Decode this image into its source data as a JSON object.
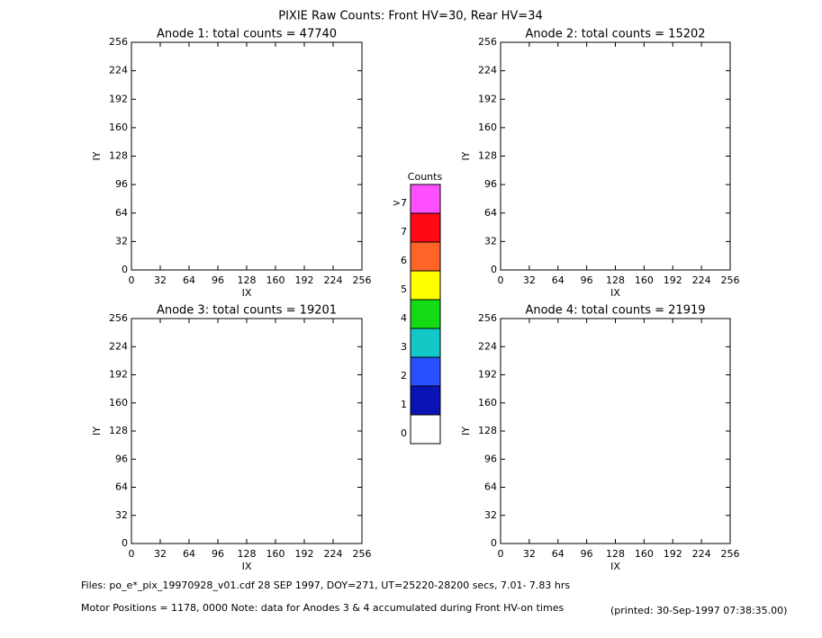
{
  "title": "PIXIE Raw Counts:  Front HV=30, Rear HV=34",
  "chart_data": [
    {
      "type": "heatmap",
      "title": "Anode 1: total counts = 47740",
      "x_label": "IX",
      "y_label": "IY",
      "xlim": [
        0,
        256
      ],
      "ylim": [
        0,
        256
      ],
      "xticks": [
        0,
        32,
        64,
        96,
        128,
        160,
        192,
        224,
        256
      ],
      "yticks": [
        0,
        32,
        64,
        96,
        128,
        160,
        192,
        224,
        256
      ]
    },
    {
      "type": "heatmap",
      "title": "Anode 2: total counts = 15202",
      "x_label": "IX",
      "y_label": "IY",
      "xlim": [
        0,
        256
      ],
      "ylim": [
        0,
        256
      ],
      "xticks": [
        0,
        32,
        64,
        96,
        128,
        160,
        192,
        224,
        256
      ],
      "yticks": [
        0,
        32,
        64,
        96,
        128,
        160,
        192,
        224,
        256
      ]
    },
    {
      "type": "heatmap",
      "title": "Anode 3: total counts = 19201",
      "x_label": "IX",
      "y_label": "IY",
      "xlim": [
        0,
        256
      ],
      "ylim": [
        0,
        256
      ],
      "xticks": [
        0,
        32,
        64,
        96,
        128,
        160,
        192,
        224,
        256
      ],
      "yticks": [
        0,
        32,
        64,
        96,
        128,
        160,
        192,
        224,
        256
      ]
    },
    {
      "type": "heatmap",
      "title": "Anode 4: total counts = 21919",
      "x_label": "IX",
      "y_label": "IY",
      "xlim": [
        0,
        256
      ],
      "ylim": [
        0,
        256
      ],
      "xticks": [
        0,
        32,
        64,
        96,
        128,
        160,
        192,
        224,
        256
      ],
      "yticks": [
        0,
        32,
        64,
        96,
        128,
        160,
        192,
        224,
        256
      ]
    }
  ],
  "colorbar": {
    "title": "Counts",
    "levels": [
      {
        "label": "0",
        "color": "#ffffff"
      },
      {
        "label": "1",
        "color": "#0a14b4"
      },
      {
        "label": "2",
        "color": "#2850ff"
      },
      {
        "label": "3",
        "color": "#14c8c8"
      },
      {
        "label": "4",
        "color": "#14dc14"
      },
      {
        "label": "5",
        "color": "#ffff00"
      },
      {
        "label": "6",
        "color": "#ff6428"
      },
      {
        "label": "7",
        "color": "#ff0a14"
      },
      {
        "label": ">7",
        "color": "#ff50ff"
      }
    ]
  },
  "footer": {
    "files": "Files: po_e*_pix_19970928_v01.cdf    28 SEP 1997, DOY=271, UT=25220-28200 secs,  7.01- 7.83 hrs",
    "motor": "Motor Positions = 1178, 0000    Note: data for Anodes 3 & 4 accumulated during Front HV-on times",
    "printed": "(printed: 30-Sep-1997 07:38:35.00)"
  }
}
